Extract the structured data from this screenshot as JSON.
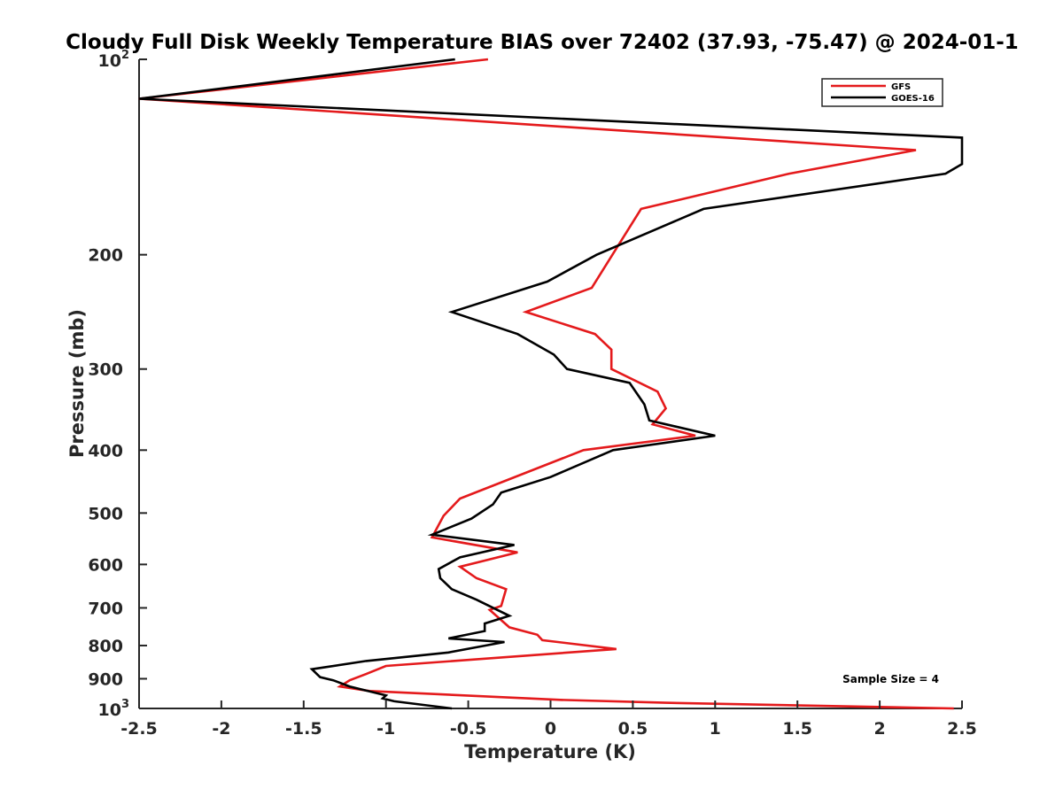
{
  "chart_data": {
    "type": "line",
    "title": "Cloudy Full Disk Weekly Temperature BIAS over 72402 (37.93, -75.47) @ 2024-01-1",
    "xlabel": "Temperature (K)",
    "ylabel": "Pressure (mb)",
    "xlim": [
      -2.5,
      2.5
    ],
    "ylim": [
      100,
      1000
    ],
    "y_scale": "log",
    "y_reversed": true,
    "x_ticks": [
      -2.5,
      -2,
      -1.5,
      -1,
      -0.5,
      0,
      0.5,
      1,
      1.5,
      2,
      2.5
    ],
    "x_tick_labels": [
      "-2.5",
      "-2",
      "-1.5",
      "-1",
      "-0.5",
      "0",
      "0.5",
      "1",
      "1.5",
      "2",
      "2.5"
    ],
    "y_ticks": [
      200,
      300,
      400,
      500,
      600,
      700,
      800,
      900
    ],
    "y_tick_labels": [
      "200",
      "300",
      "400",
      "500",
      "600",
      "700",
      "800",
      "900"
    ],
    "y_decade_ticks": [
      {
        "value": 100,
        "base": "10",
        "exp": "2"
      },
      {
        "value": 1000,
        "base": "10",
        "exp": "3"
      }
    ],
    "grid": false,
    "legend_position": "top-right",
    "annotation": "Sample Size = 4",
    "series": [
      {
        "name": "GFS",
        "color": "#e41a1c",
        "points": [
          [
            -0.38,
            100
          ],
          [
            -2.5,
            115
          ],
          [
            2.22,
            138
          ],
          [
            1.45,
            150
          ],
          [
            0.55,
            170
          ],
          [
            0.25,
            225
          ],
          [
            -0.15,
            245
          ],
          [
            0.27,
            265
          ],
          [
            0.37,
            280
          ],
          [
            0.37,
            300
          ],
          [
            0.65,
            325
          ],
          [
            0.7,
            345
          ],
          [
            0.62,
            365
          ],
          [
            0.88,
            380
          ],
          [
            0.2,
            400
          ],
          [
            -0.55,
            475
          ],
          [
            -0.65,
            505
          ],
          [
            -0.72,
            545
          ],
          [
            -0.2,
            575
          ],
          [
            -0.55,
            605
          ],
          [
            -0.45,
            630
          ],
          [
            -0.27,
            655
          ],
          [
            -0.3,
            695
          ],
          [
            -0.37,
            705
          ],
          [
            -0.25,
            750
          ],
          [
            -0.08,
            770
          ],
          [
            -0.05,
            785
          ],
          [
            0.4,
            810
          ],
          [
            -1.0,
            860
          ],
          [
            -1.12,
            885
          ],
          [
            -1.22,
            905
          ],
          [
            -1.28,
            925
          ],
          [
            -1.1,
            940
          ],
          [
            0.06,
            970
          ],
          [
            0.7,
            980
          ],
          [
            2.45,
            1000
          ]
        ]
      },
      {
        "name": "GOES-16",
        "color": "#000000",
        "points": [
          [
            -0.58,
            100
          ],
          [
            -2.5,
            115
          ],
          [
            2.5,
            132
          ],
          [
            2.5,
            145
          ],
          [
            2.4,
            150
          ],
          [
            0.93,
            170
          ],
          [
            0.28,
            200
          ],
          [
            -0.02,
            220
          ],
          [
            -0.6,
            245
          ],
          [
            -0.2,
            265
          ],
          [
            0.02,
            285
          ],
          [
            0.1,
            300
          ],
          [
            0.48,
            315
          ],
          [
            0.57,
            340
          ],
          [
            0.6,
            360
          ],
          [
            1.0,
            380
          ],
          [
            0.38,
            400
          ],
          [
            0.0,
            440
          ],
          [
            -0.3,
            465
          ],
          [
            -0.35,
            485
          ],
          [
            -0.48,
            510
          ],
          [
            -0.72,
            540
          ],
          [
            -0.22,
            560
          ],
          [
            -0.55,
            585
          ],
          [
            -0.68,
            610
          ],
          [
            -0.67,
            630
          ],
          [
            -0.6,
            655
          ],
          [
            -0.45,
            680
          ],
          [
            -0.25,
            720
          ],
          [
            -0.4,
            740
          ],
          [
            -0.4,
            760
          ],
          [
            -0.62,
            780
          ],
          [
            -0.28,
            790
          ],
          [
            -0.62,
            820
          ],
          [
            -1.12,
            845
          ],
          [
            -1.45,
            870
          ],
          [
            -1.4,
            895
          ],
          [
            -1.32,
            905
          ],
          [
            -1.22,
            925
          ],
          [
            -1.0,
            955
          ],
          [
            -1.02,
            965
          ],
          [
            -0.95,
            975
          ],
          [
            -0.6,
            1000
          ]
        ]
      }
    ]
  }
}
